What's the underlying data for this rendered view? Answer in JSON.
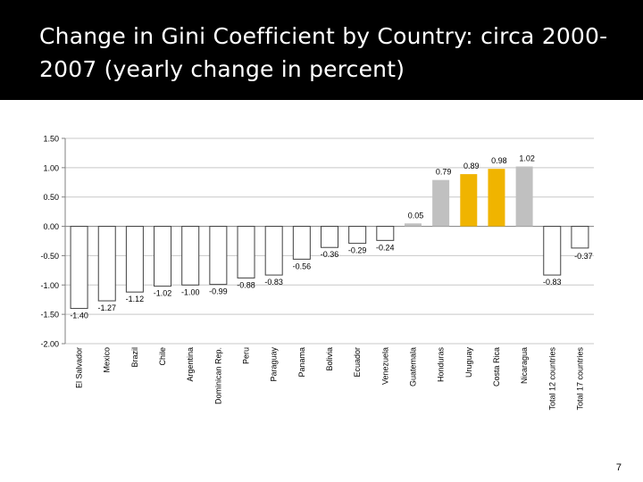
{
  "slide": {
    "title": "Change in Gini Coefficient by Country: circa 2000-2007 (yearly change in percent)",
    "page_number": "7"
  },
  "colors": {
    "negative": "#ffffff",
    "positive": "#c0c0c0",
    "highlight": "#f0b400",
    "stroke": "#404040",
    "grid": "#c8c8c8",
    "title_background": "#000000",
    "title_text": "#ffffff"
  },
  "chart_data": {
    "type": "bar",
    "title": "Change in Gini Coefficient by Country: circa 2000-2007 (yearly change in percent)",
    "xlabel": "",
    "ylabel": "",
    "ylim": [
      -2.0,
      1.5
    ],
    "yticks": [
      1.5,
      1.0,
      0.5,
      0.0,
      -0.5,
      -1.0,
      -1.5,
      -2.0
    ],
    "ytick_labels": [
      "1.50",
      "1.00",
      "0.50",
      "0.00",
      "-0.50",
      "-1.00",
      "-1.50",
      "-2.00"
    ],
    "grid": true,
    "legend": "none",
    "categories": [
      "El Salvador",
      "Mexico",
      "Brazil",
      "Chile",
      "Argentina",
      "Dominican Rep.",
      "Peru",
      "Paraguay",
      "Panama",
      "Bolivia",
      "Ecuador",
      "Venezuela",
      "Guatemala",
      "Honduras",
      "Uruguay",
      "Costa Rica",
      "Nicaragua",
      "Total 12 countries",
      "Total 17 countries"
    ],
    "values": [
      -1.4,
      -1.27,
      -1.12,
      -1.02,
      -1.0,
      -0.99,
      -0.88,
      -0.83,
      -0.56,
      -0.36,
      -0.29,
      -0.24,
      0.05,
      0.79,
      0.89,
      0.98,
      1.02,
      -0.83,
      -0.37
    ],
    "value_labels": [
      "-1.40",
      "-1.27",
      "-1.12",
      "-1.02",
      "-1.00",
      "-0.99",
      "-0.88",
      "-0.83",
      "-0.56",
      "-0.36",
      "-0.29",
      "-0.24",
      "0.05",
      "0.79",
      "0.89",
      "0.98",
      "1.02",
      "-0.83",
      "-0.37"
    ],
    "highlighted": [
      "Uruguay",
      "Costa Rica"
    ]
  }
}
